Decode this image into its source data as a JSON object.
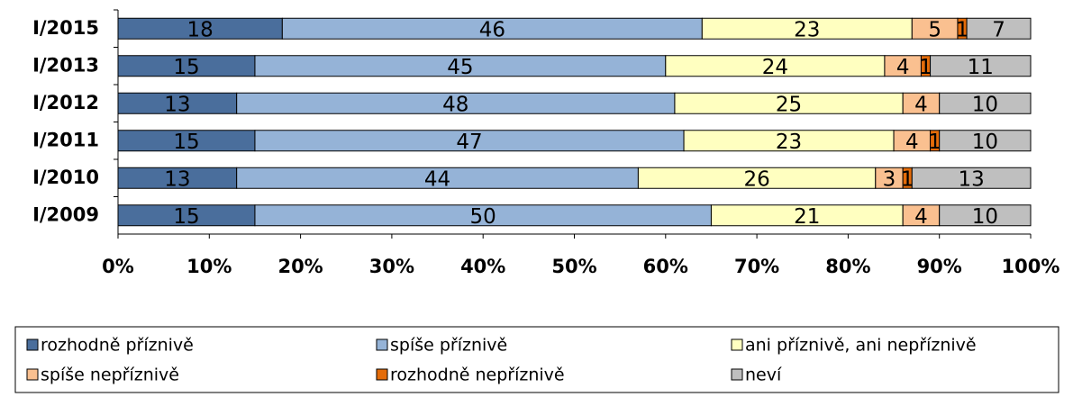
{
  "chart_data": {
    "type": "stacked_barh",
    "categories": [
      "I/2015",
      "I/2013",
      "I/2012",
      "I/2011",
      "I/2010",
      "I/2009"
    ],
    "series": [
      {
        "name": "rozhodně příznivě",
        "color": "#4a6e9c",
        "values": [
          18,
          15,
          13,
          15,
          13,
          15
        ]
      },
      {
        "name": "spíše příznivě",
        "color": "#95b3d7",
        "values": [
          46,
          45,
          48,
          47,
          44,
          50
        ]
      },
      {
        "name": "ani příznivě, ani nepříznivě",
        "color": "#ffffc0",
        "values": [
          23,
          24,
          25,
          23,
          26,
          21
        ]
      },
      {
        "name": "spíše nepříznivě",
        "color": "#fac090",
        "values": [
          5,
          4,
          4,
          4,
          3,
          4
        ]
      },
      {
        "name": "rozhodně nepříznivě",
        "color": "#e46c0a",
        "values": [
          1,
          1,
          null,
          1,
          1,
          null
        ]
      },
      {
        "name": "neví",
        "color": "#bfbfbf",
        "values": [
          7,
          11,
          10,
          10,
          13,
          10
        ]
      }
    ],
    "xlim": [
      0,
      100
    ],
    "xticks": [
      {
        "value": 0,
        "label": "0%"
      },
      {
        "value": 10,
        "label": "10%"
      },
      {
        "value": 20,
        "label": "20%"
      },
      {
        "value": 30,
        "label": "30%"
      },
      {
        "value": 40,
        "label": "40%"
      },
      {
        "value": 50,
        "label": "50%"
      },
      {
        "value": 60,
        "label": "60%"
      },
      {
        "value": 70,
        "label": "70%"
      },
      {
        "value": 80,
        "label": "80%"
      },
      {
        "value": 90,
        "label": "90%"
      },
      {
        "value": 100,
        "label": "100%"
      }
    ],
    "legend": "bottom"
  }
}
